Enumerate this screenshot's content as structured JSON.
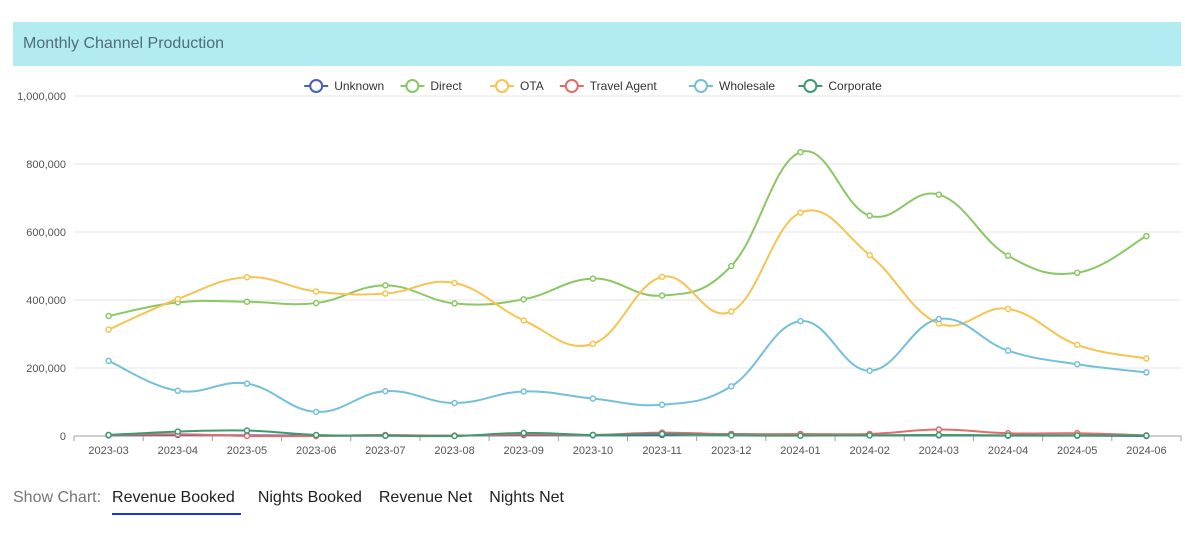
{
  "panel": {
    "title": "Monthly Channel Production"
  },
  "footer": {
    "label": "Show Chart:",
    "tabs": [
      {
        "label": "Revenue Booked",
        "active": true
      },
      {
        "label": "Nights Booked",
        "active": false
      },
      {
        "label": "Revenue Net",
        "active": false
      },
      {
        "label": "Nights Net",
        "active": false
      }
    ]
  },
  "chart_data": {
    "type": "line",
    "title": "",
    "xlabel": "",
    "ylabel": "",
    "ylim": [
      0,
      1000000
    ],
    "y_ticks": [
      "0",
      "200,000",
      "400,000",
      "600,000",
      "800,000",
      "1,000,000"
    ],
    "grid": true,
    "legend_position": "top-center",
    "categories": [
      "2023-03",
      "2023-04",
      "2023-05",
      "2023-06",
      "2023-07",
      "2023-08",
      "2023-09",
      "2023-10",
      "2023-11",
      "2023-12",
      "2024-01",
      "2024-02",
      "2024-03",
      "2024-04",
      "2024-05",
      "2024-06"
    ],
    "series": [
      {
        "name": "Unknown",
        "color": "#4a60b6",
        "values": [
          2000,
          3000,
          2000,
          1000,
          1000,
          1000,
          3000,
          2000,
          3000,
          6000,
          3000,
          2000,
          2000,
          1000,
          1000,
          0
        ]
      },
      {
        "name": "Direct",
        "color": "#8bc764",
        "values": [
          353000,
          393000,
          395000,
          391000,
          443000,
          390000,
          402000,
          463000,
          413000,
          500000,
          835000,
          648000,
          710000,
          530000,
          480000,
          588000
        ]
      },
      {
        "name": "OTA",
        "color": "#f5c452",
        "values": [
          313000,
          403000,
          467000,
          425000,
          419000,
          450000,
          340000,
          271000,
          468000,
          366000,
          657000,
          532000,
          331000,
          374000,
          268000,
          228000
        ]
      },
      {
        "name": "Travel Agent",
        "color": "#e16c6c",
        "values": [
          3000,
          5000,
          0,
          0,
          3000,
          1000,
          5000,
          3000,
          10000,
          5000,
          6000,
          6000,
          19000,
          8000,
          8000,
          2000
        ]
      },
      {
        "name": "Wholesale",
        "color": "#74c0da",
        "values": [
          221000,
          133000,
          154000,
          71000,
          132000,
          97000,
          131000,
          110000,
          92000,
          146000,
          338000,
          192000,
          344000,
          251000,
          211000,
          187000
        ]
      },
      {
        "name": "Corporate",
        "color": "#3d9a6d",
        "values": [
          3000,
          13000,
          16000,
          3000,
          1000,
          0,
          9000,
          3000,
          6000,
          2000,
          1000,
          2000,
          3000,
          2000,
          2000,
          1000
        ]
      }
    ]
  }
}
